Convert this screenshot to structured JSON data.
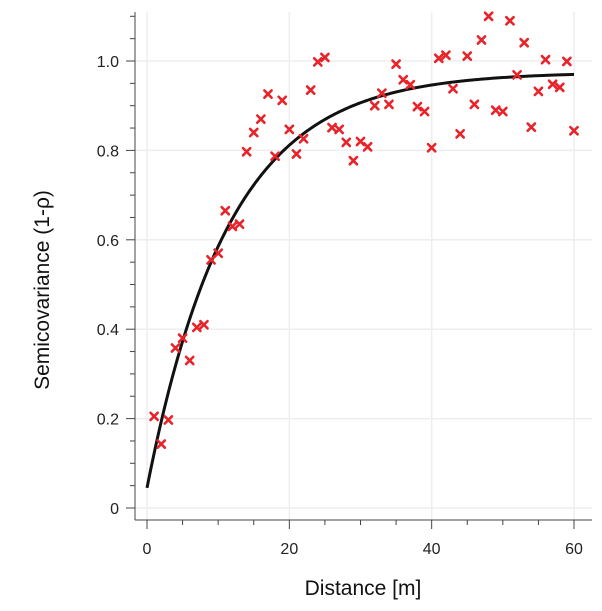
{
  "chart_data": {
    "type": "scatter",
    "title": "",
    "xlabel": "Distance [m]",
    "ylabel": "Semicovariance (1-ρ)",
    "xlim": [
      0,
      60
    ],
    "ylim": [
      0,
      1.1
    ],
    "x_ticks": [
      0,
      20,
      40,
      60
    ],
    "x_tick_labels": [
      "0",
      "20",
      "40",
      "60"
    ],
    "y_ticks": [
      0,
      0.2,
      0.4,
      0.6,
      0.8,
      1.0
    ],
    "y_tick_labels": [
      "0",
      "0.2",
      "0.4",
      "0.6",
      "0.8",
      "1.0"
    ],
    "grid": true,
    "colors": {
      "points": "#e8242a",
      "curve": "#111111",
      "grid": "#eeeeee"
    },
    "series": [
      {
        "type": "scatter",
        "marker": "x",
        "points": [
          [
            1,
            0.205
          ],
          [
            2,
            0.143
          ],
          [
            3,
            0.197
          ],
          [
            4,
            0.358
          ],
          [
            5,
            0.38
          ],
          [
            6,
            0.33
          ],
          [
            7,
            0.404
          ],
          [
            8,
            0.41
          ],
          [
            9,
            0.555
          ],
          [
            10,
            0.57
          ],
          [
            11,
            0.665
          ],
          [
            12,
            0.63
          ],
          [
            13,
            0.635
          ],
          [
            14,
            0.797
          ],
          [
            15,
            0.84
          ],
          [
            16,
            0.87
          ],
          [
            17,
            0.926
          ],
          [
            18,
            0.787
          ],
          [
            19,
            0.912
          ],
          [
            20,
            0.847
          ],
          [
            21,
            0.792
          ],
          [
            22,
            0.826
          ],
          [
            23,
            0.935
          ],
          [
            24,
            0.998
          ],
          [
            25,
            1.008
          ],
          [
            26,
            0.851
          ],
          [
            27,
            0.847
          ],
          [
            28,
            0.818
          ],
          [
            29,
            0.777
          ],
          [
            30,
            0.82
          ],
          [
            31,
            0.808
          ],
          [
            32,
            0.9
          ],
          [
            33,
            0.928
          ],
          [
            34,
            0.903
          ],
          [
            35,
            0.993
          ],
          [
            36,
            0.958
          ],
          [
            37,
            0.947
          ],
          [
            38,
            0.898
          ],
          [
            39,
            0.887
          ],
          [
            40,
            0.806
          ],
          [
            41,
            1.006
          ],
          [
            42,
            1.013
          ],
          [
            43,
            0.938
          ],
          [
            44,
            0.837
          ],
          [
            45,
            1.011
          ],
          [
            46,
            0.903
          ],
          [
            47,
            1.047
          ],
          [
            48,
            1.1
          ],
          [
            49,
            0.89
          ],
          [
            50,
            0.887
          ],
          [
            51,
            1.09
          ],
          [
            52,
            0.969
          ],
          [
            53,
            1.041
          ],
          [
            54,
            0.852
          ],
          [
            55,
            0.932
          ],
          [
            56,
            1.003
          ],
          [
            57,
            0.948
          ],
          [
            58,
            0.941
          ],
          [
            59,
            0.999
          ],
          [
            60,
            0.844
          ]
        ]
      },
      {
        "type": "line",
        "model": "exponential",
        "nugget": 0.045,
        "sill": 0.975,
        "range": 11.5,
        "x_start": 0,
        "x_end": 60
      }
    ]
  }
}
